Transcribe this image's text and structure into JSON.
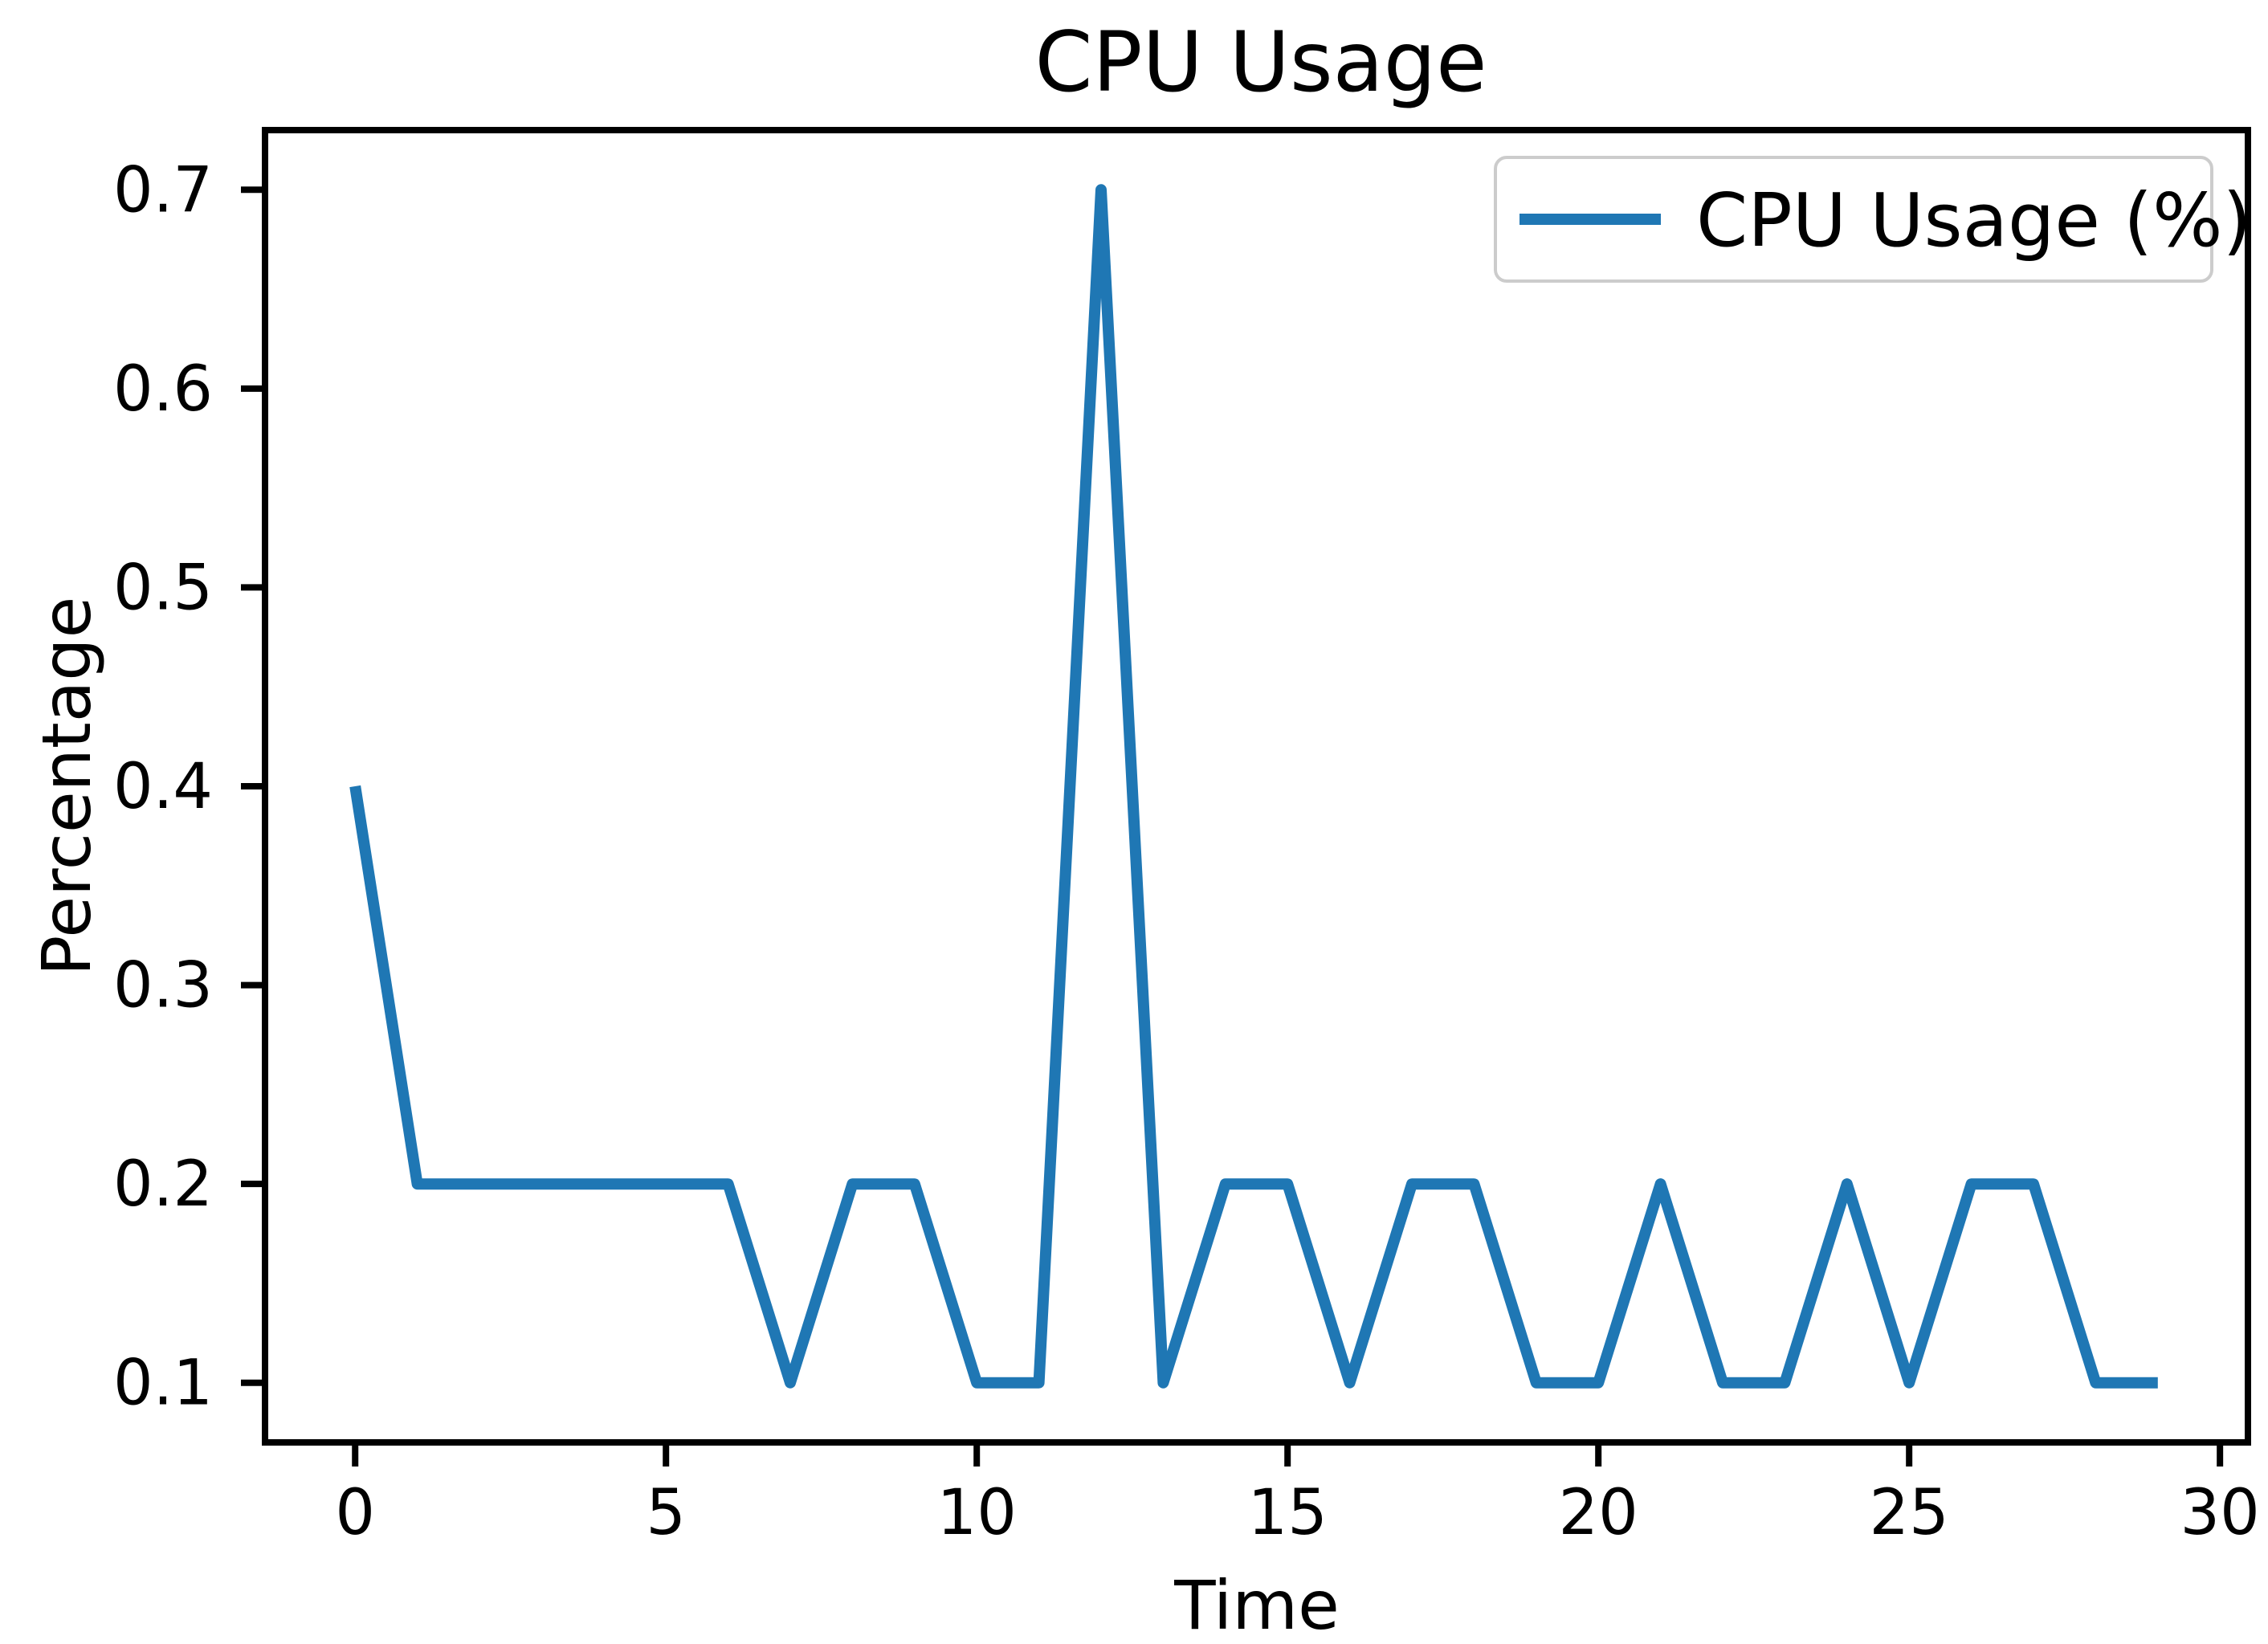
{
  "chart_data": {
    "type": "line",
    "title": "CPU Usage",
    "xlabel": "Time",
    "ylabel": "Percentage",
    "legend": [
      "CPU Usage (%)"
    ],
    "legend_position": "upper right",
    "grid": false,
    "line_color": "#1f77b4",
    "axis_color": "#000000",
    "legend_border_color": "#cccccc",
    "x": [
      0,
      1,
      2,
      3,
      4,
      5,
      6,
      7,
      8,
      9,
      10,
      11,
      12,
      13,
      14,
      15,
      16,
      17,
      18,
      19,
      20,
      21,
      22,
      23,
      24,
      25,
      26,
      27,
      28,
      29
    ],
    "values": [
      0.4,
      0.2,
      0.2,
      0.2,
      0.2,
      0.2,
      0.2,
      0.1,
      0.2,
      0.2,
      0.1,
      0.1,
      0.7,
      0.1,
      0.2,
      0.2,
      0.1,
      0.2,
      0.2,
      0.1,
      0.1,
      0.2,
      0.1,
      0.1,
      0.2,
      0.1,
      0.2,
      0.2,
      0.1,
      0.1
    ],
    "xlim": [
      -1.45,
      30.45
    ],
    "ylim": [
      0.07,
      0.73
    ],
    "x_ticks": [
      0,
      5,
      10,
      15,
      20,
      25,
      30
    ],
    "y_ticks": [
      0.1,
      0.2,
      0.3,
      0.4,
      0.5,
      0.6,
      0.7
    ]
  }
}
